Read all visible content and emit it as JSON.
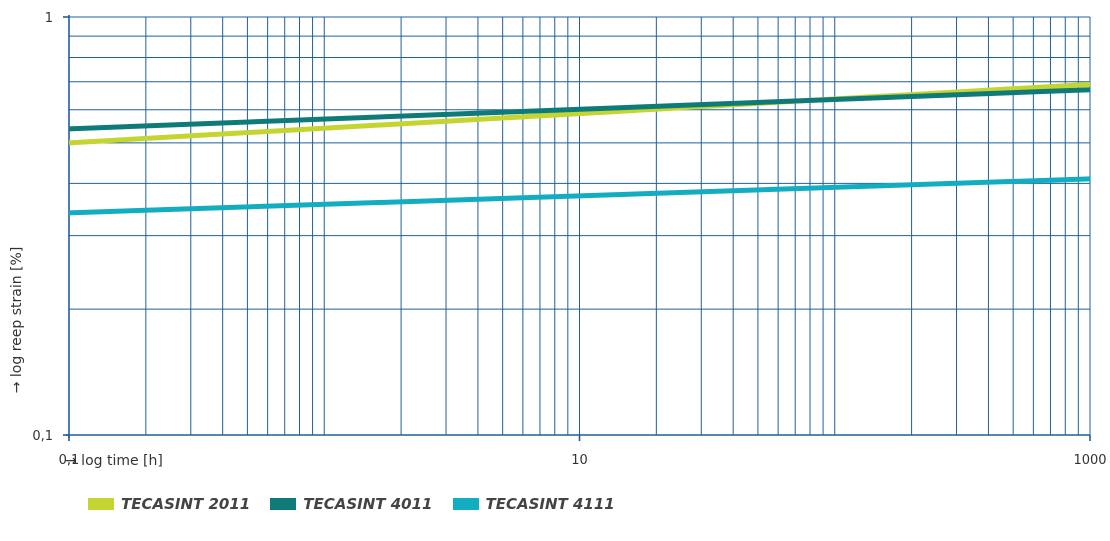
{
  "chart_data": {
    "type": "line",
    "xlabel": "→  log time [h]",
    "ylabel": "→  log reep strain  [%]",
    "x_scale": "log",
    "y_scale": "log",
    "xlim": [
      0.1,
      1000
    ],
    "ylim": [
      0.1,
      1
    ],
    "x_ticks": [
      {
        "value": 0.1,
        "label": "0,1"
      },
      {
        "value": 10,
        "label": "10"
      },
      {
        "value": 1000,
        "label": "1000"
      }
    ],
    "y_ticks": [
      {
        "value": 1,
        "label": "1"
      },
      {
        "value": 0.1,
        "label": "0,1"
      }
    ],
    "grid": true,
    "legend_position": "bottom-left",
    "x": [
      0.1,
      1000
    ],
    "series": [
      {
        "name": "TECASINT 2011",
        "color": "#c4d431",
        "values": [
          0.5,
          0.69
        ]
      },
      {
        "name": "TECASINT 4011",
        "color": "#0f7b78",
        "values": [
          0.54,
          0.67
        ]
      },
      {
        "name": "TECASINT 4111",
        "color": "#13adc1",
        "values": [
          0.34,
          0.41
        ]
      }
    ]
  },
  "colors": {
    "grid": "#1f5f9a",
    "text": "#333333"
  }
}
